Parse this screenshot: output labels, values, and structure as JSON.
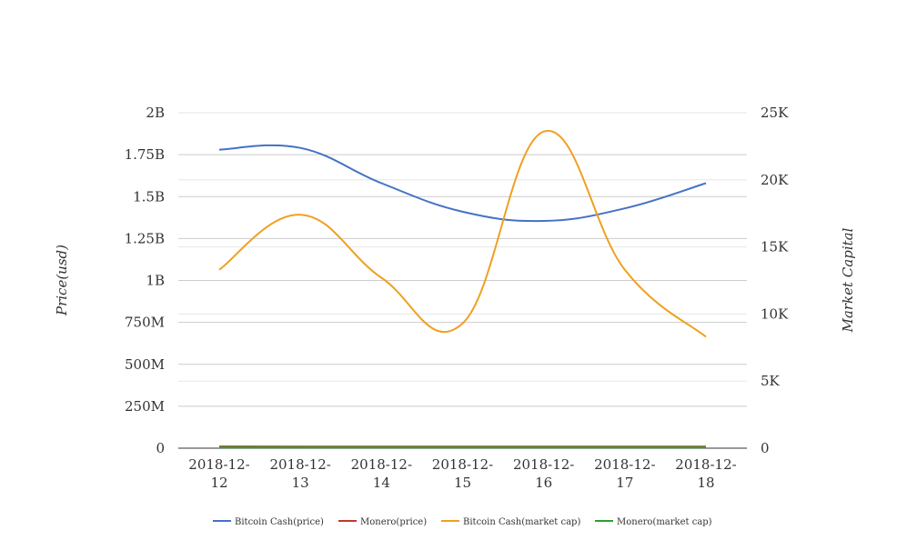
{
  "chart_data": {
    "type": "line",
    "categories": [
      "2018-12-12",
      "2018-12-13",
      "2018-12-14",
      "2018-12-15",
      "2018-12-16",
      "2018-12-17",
      "2018-12-18"
    ],
    "category_label_lines": [
      [
        "2018-12-",
        "12"
      ],
      [
        "2018-12-",
        "13"
      ],
      [
        "2018-12-",
        "14"
      ],
      [
        "2018-12-",
        "15"
      ],
      [
        "2018-12-",
        "16"
      ],
      [
        "2018-12-",
        "17"
      ],
      [
        "2018-12-",
        "18"
      ]
    ],
    "y_left": {
      "label": "Price(usd)",
      "range": [
        0,
        2000000000
      ],
      "ticks": [
        0,
        250000000,
        500000000,
        750000000,
        1000000000,
        1250000000,
        1500000000,
        1750000000,
        2000000000
      ],
      "tick_labels": [
        "0",
        "250M",
        "500M",
        "750M",
        "1B",
        "1.25B",
        "1.5B",
        "1.75B",
        "2B"
      ]
    },
    "y_right": {
      "label": "Market Capital",
      "range": [
        0,
        25000
      ],
      "ticks": [
        0,
        5000,
        10000,
        15000,
        20000,
        25000
      ],
      "tick_labels": [
        "0",
        "5K",
        "10K",
        "15K",
        "20K",
        "25K"
      ]
    },
    "series": [
      {
        "name": "Bitcoin Cash(price)",
        "axis": "left",
        "color": "#4472c4",
        "values": [
          1780000000,
          1790000000,
          1580000000,
          1410000000,
          1355000000,
          1430000000,
          1580000000
        ]
      },
      {
        "name": "Monero(price)",
        "axis": "left",
        "color": "#c0392b",
        "values": [
          10000000,
          10000000,
          10000000,
          10000000,
          10000000,
          10000000,
          10000000
        ]
      },
      {
        "name": "Bitcoin Cash(market cap)",
        "axis": "right",
        "color": "#f0a020",
        "values": [
          13300,
          17400,
          12700,
          9300,
          23600,
          13300,
          8300
        ]
      },
      {
        "name": "Monero(market cap)",
        "axis": "right",
        "color": "#2ca02c",
        "values": [
          60,
          60,
          60,
          60,
          60,
          60,
          60
        ]
      }
    ],
    "grid": true,
    "legend_position": "bottom"
  }
}
